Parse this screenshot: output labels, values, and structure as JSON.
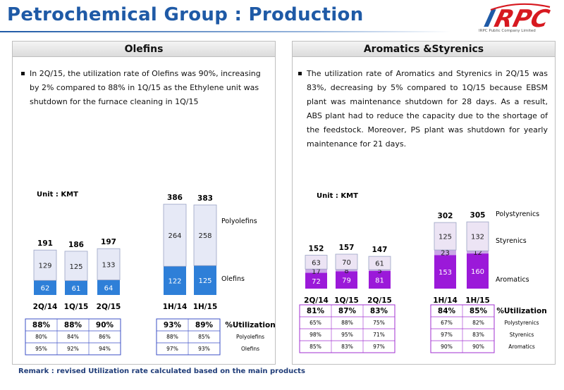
{
  "header": {
    "title": "Petrochemical Group : Production",
    "company": "IRPC Public Company Limited",
    "brand_color": "#1f5aa6",
    "logo_color": "#d71920"
  },
  "remark": "Remark :  revised  Utilization rate calculated based on the main products",
  "left": {
    "panel_title": "Olefins",
    "description": "In 2Q/15, the utilization rate of Olefins was 90%, increasing by 2% compared to 88% in  1Q/15 as the Ethylene unit was shutdown for the furnace cleaning in 1Q/15",
    "unit_label": "Unit : KMT",
    "series_labels": [
      "Olefins",
      "Polyolefins"
    ],
    "utilization_header": "%Utilization",
    "table_rows": [
      {
        "label": "%Utilization",
        "values": [
          "88%",
          "88%",
          "90%",
          "93%",
          "89%"
        ],
        "bold": true
      },
      {
        "label": "Polyolefins",
        "values": [
          "80%",
          "84%",
          "86%",
          "88%",
          "85%"
        ],
        "bold": false
      },
      {
        "label": "Olefins",
        "values": [
          "95%",
          "92%",
          "94%",
          "97%",
          "93%"
        ],
        "bold": false
      }
    ]
  },
  "right": {
    "panel_title": "Aromatics &Styrenics",
    "description": "The utilization rate of Aromatics and Styrenics in 2Q/15 was 83%,  decreasing by 5% compared to 1Q/15 because EBSM plant was maintenance shutdown for 28 days. As a result, ABS plant had to reduce the capacity due to the shortage of the feedstock. Moreover, PS plant was shutdown for yearly maintenance for 21 days.",
    "unit_label": "Unit : KMT",
    "series_labels": [
      "Aromatics",
      "Styrenics",
      "Polystyrenics"
    ],
    "utilization_header": "%Utilization",
    "table_rows": [
      {
        "label": "%Utilization",
        "values": [
          "81%",
          "87%",
          "83%",
          "84%",
          "85%"
        ],
        "bold": true
      },
      {
        "label": "Polystyrenics",
        "values": [
          "65%",
          "88%",
          "75%",
          "67%",
          "82%"
        ],
        "bold": false
      },
      {
        "label": "Styrenics",
        "values": [
          "98%",
          "95%",
          "71%",
          "97%",
          "83%"
        ],
        "bold": false
      },
      {
        "label": "Aromatics",
        "values": [
          "85%",
          "83%",
          "97%",
          "90%",
          "90%"
        ],
        "bold": false
      }
    ]
  },
  "chart_data": [
    {
      "type": "bar",
      "stacked": true,
      "categories": [
        "2Q/14",
        "1Q/15",
        "2Q/15",
        "1H/14",
        "1H/15"
      ],
      "series": [
        {
          "name": "Olefins",
          "values": [
            62,
            61,
            64,
            122,
            125
          ],
          "color": "#2e7fd8"
        },
        {
          "name": "Polyolefins",
          "values": [
            129,
            125,
            133,
            264,
            258
          ],
          "color": "#e6e9f6"
        }
      ],
      "totals": [
        191,
        186,
        197,
        386,
        383
      ]
    },
    {
      "type": "bar",
      "stacked": true,
      "categories": [
        "2Q/14",
        "1Q/15",
        "2Q/15",
        "1H/14",
        "1H/15"
      ],
      "series": [
        {
          "name": "Aromatics",
          "values": [
            72,
            79,
            81,
            153,
            160
          ],
          "color": "#9b19d9"
        },
        {
          "name": "Styrenics",
          "values": [
            17,
            8,
            5,
            23,
            12
          ],
          "color": "#c9a6e6"
        },
        {
          "name": "Polystyrenics",
          "values": [
            63,
            70,
            61,
            125,
            132
          ],
          "color": "#ece4f4"
        }
      ],
      "totals": [
        152,
        157,
        147,
        302,
        305
      ]
    }
  ]
}
